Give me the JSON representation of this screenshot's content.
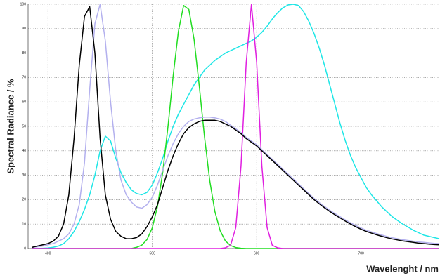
{
  "chart_data": {
    "type": "line",
    "y_label": "Spectral Radiance / %",
    "x_label": "Wavelenght / nm",
    "xlim": [
      381,
      775
    ],
    "xticks": [
      400,
      500,
      600,
      700
    ],
    "ylim": [
      0,
      100
    ],
    "yticks": [
      0,
      10,
      20,
      30,
      40,
      50,
      60,
      70,
      80,
      90,
      100
    ],
    "grid": true,
    "x": [
      385,
      390,
      395,
      400,
      405,
      410,
      415,
      420,
      425,
      430,
      435,
      440,
      445,
      450,
      455,
      460,
      465,
      470,
      475,
      480,
      485,
      490,
      495,
      500,
      505,
      510,
      515,
      520,
      525,
      530,
      535,
      540,
      545,
      550,
      555,
      560,
      565,
      570,
      575,
      580,
      585,
      590,
      595,
      600,
      605,
      610,
      615,
      620,
      625,
      630,
      635,
      640,
      645,
      650,
      655,
      660,
      665,
      670,
      675,
      680,
      685,
      690,
      695,
      700,
      705,
      710,
      715,
      720,
      725,
      730,
      735,
      740,
      745,
      750,
      755,
      760,
      765,
      770,
      775
    ],
    "series": [
      {
        "name": "Cyan",
        "color": "#1ee6e6",
        "values": [
          0,
          0,
          0.1,
          0.2,
          0.5,
          1,
          2,
          4,
          7,
          11,
          16,
          22,
          30,
          40,
          46,
          44,
          37,
          31,
          27,
          24,
          22.5,
          22,
          23,
          26,
          31,
          37,
          44,
          50,
          55,
          59,
          63,
          67,
          70,
          73,
          75,
          77,
          78.5,
          80,
          81,
          82,
          83,
          84,
          85,
          86.5,
          88.5,
          91,
          94,
          96.5,
          98.5,
          99.7,
          100,
          99.5,
          97,
          93,
          88,
          82,
          75,
          67,
          59,
          51,
          44,
          38,
          33,
          29,
          25,
          22,
          19.5,
          17,
          15,
          13,
          11.5,
          10,
          8.8,
          7.5,
          6.5,
          5.5,
          5,
          4.5,
          4
        ]
      },
      {
        "name": "Green",
        "color": "#22dd22",
        "values": [
          0,
          0,
          0,
          0,
          0,
          0,
          0,
          0,
          0,
          0,
          0,
          0,
          0,
          0,
          0,
          0,
          0,
          0,
          0,
          0,
          0.5,
          1.4,
          3.7,
          8.5,
          17.3,
          31.2,
          49.8,
          70.7,
          88.9,
          99.5,
          97.9,
          85.7,
          66.6,
          45.8,
          27.9,
          15.1,
          7.3,
          3.1,
          1.2,
          0.4,
          0.1,
          0,
          0,
          0,
          0,
          0,
          0,
          0,
          0,
          0,
          0,
          0,
          0,
          0,
          0,
          0,
          0,
          0,
          0,
          0,
          0,
          0,
          0,
          0,
          0,
          0,
          0,
          0,
          0,
          0,
          0,
          0,
          0,
          0,
          0,
          0,
          0,
          0,
          0
        ]
      },
      {
        "name": "Magenta",
        "color": "#e020e0",
        "values": [
          0,
          0,
          0,
          0,
          0,
          0,
          0,
          0,
          0,
          0,
          0,
          0,
          0,
          0,
          0,
          0,
          0,
          0,
          0,
          0,
          0,
          0,
          0,
          0,
          0,
          0,
          0,
          0,
          0,
          0,
          0,
          0,
          0,
          0,
          0,
          0,
          0,
          0.3,
          1.3,
          8.6,
          33.7,
          76.2,
          100,
          76.2,
          33.7,
          8.6,
          1.3,
          0.3,
          0,
          0,
          0,
          0,
          0,
          0,
          0,
          0,
          0,
          0,
          0,
          0,
          0,
          0,
          0,
          0,
          0,
          0,
          0,
          0,
          0,
          0,
          0,
          0,
          0,
          0,
          0,
          0,
          0,
          0,
          0
        ]
      },
      {
        "name": "Lavender",
        "color": "#b3b0ee",
        "values": [
          0.5,
          0.7,
          1,
          1.5,
          2,
          3,
          4,
          6,
          10,
          18,
          35,
          65,
          92,
          100,
          85,
          60,
          40,
          28,
          22,
          19,
          17,
          16.5,
          18,
          21,
          26,
          32,
          38,
          43,
          47,
          50,
          52,
          53,
          53.5,
          53.8,
          53.8,
          53.5,
          53,
          52,
          50.5,
          49,
          47.5,
          45.5,
          44,
          42.5,
          40.5,
          38.5,
          36.5,
          34.5,
          32.5,
          30.5,
          28.5,
          26.5,
          24.5,
          22.5,
          20.5,
          18.8,
          17.2,
          15.7,
          14.3,
          13,
          11.7,
          10.5,
          9.4,
          8.4,
          7.5,
          6.8,
          6.1,
          5.5,
          4.9,
          4.4,
          4,
          3.6,
          3.3,
          3,
          2.7,
          2.5,
          2.3,
          2.1,
          2
        ]
      },
      {
        "name": "Black",
        "color": "#000000",
        "values": [
          0.5,
          1,
          1.5,
          2,
          3,
          5,
          10,
          22,
          45,
          75,
          95,
          99,
          80,
          45,
          22,
          12,
          7,
          5,
          4,
          4,
          4.5,
          6,
          9,
          13,
          18,
          25,
          32,
          38,
          43,
          47,
          49.5,
          51,
          52,
          52.5,
          52.5,
          52.5,
          52,
          51,
          50,
          48.5,
          47,
          45,
          43.5,
          42,
          40,
          38,
          36,
          34,
          32,
          30,
          28,
          26,
          24,
          22,
          20,
          18.3,
          16.7,
          15.2,
          13.8,
          12.5,
          11.2,
          10,
          8.9,
          7.9,
          7,
          6.3,
          5.6,
          5,
          4.4,
          3.9,
          3.5,
          3.1,
          2.8,
          2.5,
          2.2,
          2,
          1.8,
          1.6,
          1.5
        ]
      }
    ]
  }
}
